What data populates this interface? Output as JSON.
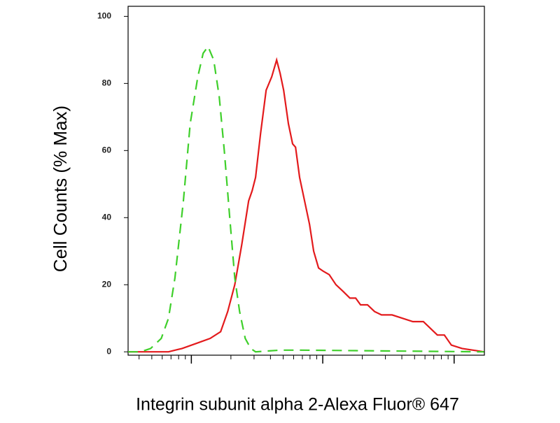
{
  "chart_data": {
    "type": "line",
    "y_label": "Cell Counts (% Max)",
    "x_label": "Integrin subunit alpha 2-Alexa Fluor® 647",
    "log_x": true,
    "xlim": [
      33,
      17000
    ],
    "xticks": [
      100,
      1000,
      10000
    ],
    "xminor_ticks": [
      40,
      50,
      60,
      70,
      80,
      90,
      200,
      300,
      400,
      500,
      600,
      700,
      800,
      900,
      2000,
      3000,
      4000,
      5000,
      6000,
      7000,
      8000,
      9000
    ],
    "ylim": [
      -1,
      103
    ],
    "yticks": [
      0,
      20,
      40,
      60,
      80,
      100
    ],
    "series": [
      {
        "color": "#e31a1c",
        "dash": false,
        "x": [
          33,
          67,
          85,
          109,
          139,
          167,
          189,
          214,
          242,
          273,
          290,
          308,
          336,
          371,
          409,
          446,
          474,
          504,
          548,
          590,
          621,
          667,
          727,
          793,
          853,
          929,
          1010,
          1120,
          1260,
          1430,
          1610,
          1780,
          1940,
          2190,
          2480,
          2800,
          3370,
          4040,
          4850,
          5830,
          6590,
          7450,
          8430,
          9530,
          11500,
          16900
        ],
        "values": [
          0,
          0,
          1,
          2.5,
          4,
          6,
          12,
          20,
          32,
          45,
          48,
          52,
          65,
          78,
          82,
          87,
          83,
          78,
          68,
          62,
          61,
          52,
          45,
          38,
          30,
          25,
          24,
          23,
          20,
          18,
          16,
          16,
          14,
          14,
          12,
          11,
          11,
          10,
          9,
          9,
          7,
          5,
          5,
          2,
          1,
          0
        ]
      },
      {
        "color": "#3ecf2a",
        "dash": true,
        "x": [
          33,
          41,
          49,
          59,
          67,
          75,
          87,
          98,
          112,
          123,
          134,
          148,
          163,
          178,
          196,
          214,
          233,
          257,
          283,
          308,
          474,
          684,
          16900
        ],
        "values": [
          0,
          0,
          1,
          4,
          10,
          22,
          45,
          68,
          82,
          89,
          91,
          87,
          76,
          60,
          40,
          22,
          12,
          4,
          1,
          0,
          0.5,
          0.5,
          0
        ]
      }
    ]
  }
}
